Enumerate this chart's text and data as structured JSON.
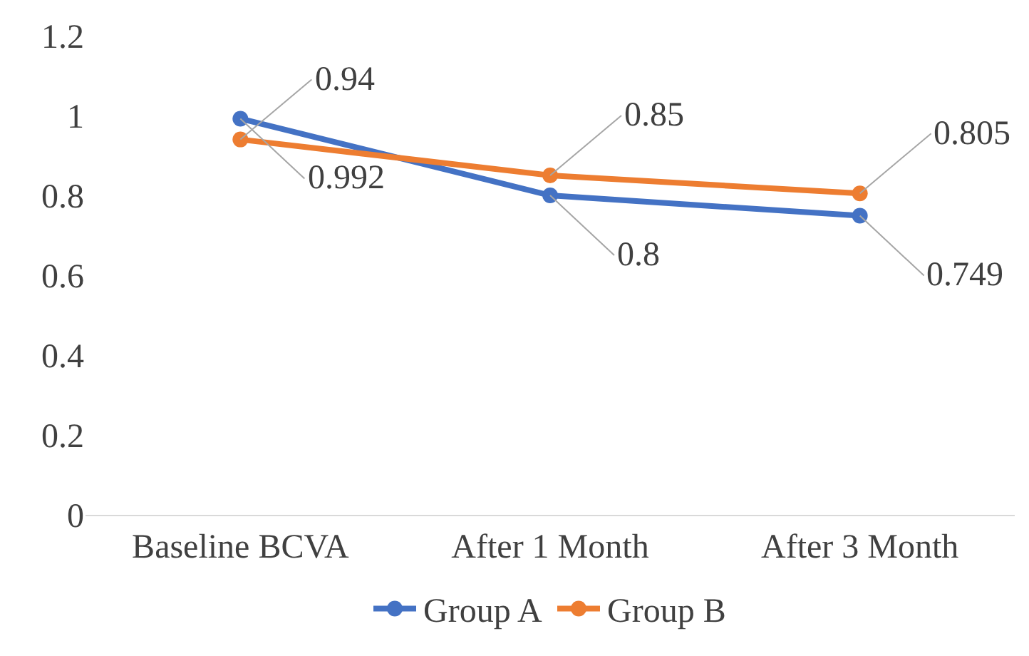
{
  "chart_data": {
    "type": "line",
    "categories": [
      "Baseline BCVA",
      "After 1 Month",
      "After 3 Month"
    ],
    "series": [
      {
        "name": "Group A",
        "color": "#4472c4",
        "values": [
          0.992,
          0.8,
          0.749
        ]
      },
      {
        "name": "Group B",
        "color": "#ed7d31",
        "values": [
          0.94,
          0.85,
          0.805
        ]
      }
    ],
    "ylim": [
      0,
      1.2
    ],
    "yticks": [
      0,
      0.2,
      0.4,
      0.6,
      0.8,
      1,
      1.2
    ],
    "grid": false,
    "legend": "bottom",
    "marker": "circle",
    "line_style": "solid",
    "data_labels": true
  }
}
